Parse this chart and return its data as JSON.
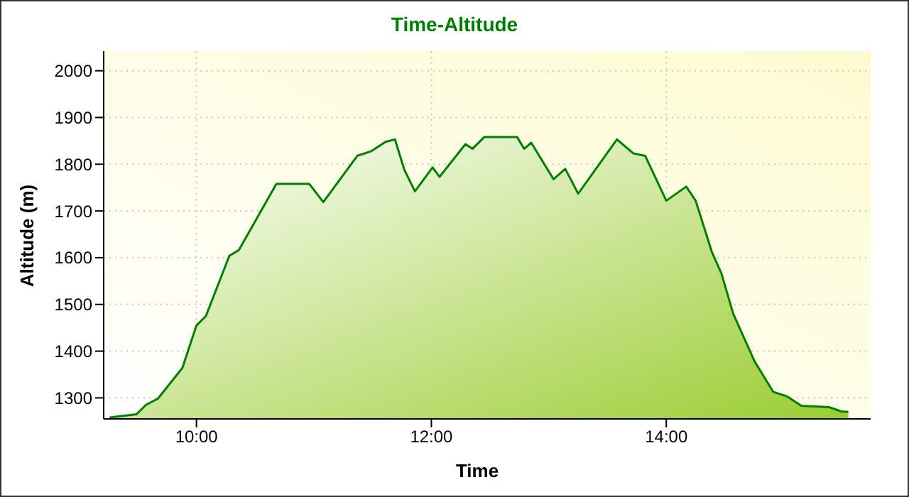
{
  "chart_data": {
    "type": "area",
    "title": "Time-Altitude",
    "xlabel": "Time",
    "ylabel": "Altitude (m)",
    "x": [
      9.26,
      9.49,
      9.57,
      9.67,
      9.88,
      10.0,
      10.08,
      10.28,
      10.36,
      10.52,
      10.68,
      10.96,
      11.08,
      11.37,
      11.49,
      11.61,
      11.69,
      11.77,
      11.86,
      12.01,
      12.07,
      12.29,
      12.35,
      12.45,
      12.73,
      12.79,
      12.85,
      13.04,
      13.14,
      13.25,
      13.58,
      13.72,
      13.82,
      14.0,
      14.17,
      14.25,
      14.39,
      14.47,
      14.57,
      14.75,
      14.91,
      15.03,
      15.15,
      15.39,
      15.49,
      15.55
    ],
    "series": [
      {
        "color": "#008000",
        "values": [
          1258,
          1265,
          1285,
          1298,
          1364,
          1455,
          1475,
          1604,
          1616,
          1687,
          1758,
          1758,
          1719,
          1818,
          1828,
          1848,
          1853,
          1788,
          1742,
          1793,
          1773,
          1843,
          1833,
          1858,
          1858,
          1833,
          1846,
          1768,
          1790,
          1737,
          1853,
          1823,
          1818,
          1722,
          1752,
          1722,
          1611,
          1566,
          1480,
          1379,
          1313,
          1303,
          1283,
          1280,
          1271,
          1270
        ]
      }
    ],
    "xlim": [
      9.21,
      15.74
    ],
    "xticks": [
      {
        "value": 10,
        "label": "10:00"
      },
      {
        "value": 12,
        "label": "12:00"
      },
      {
        "value": 14,
        "label": "14:00"
      }
    ],
    "ylim": [
      1255,
      2042
    ],
    "yticks": [
      1300,
      1400,
      1500,
      1600,
      1700,
      1800,
      1900,
      2000
    ],
    "grid": true,
    "legend": false
  }
}
